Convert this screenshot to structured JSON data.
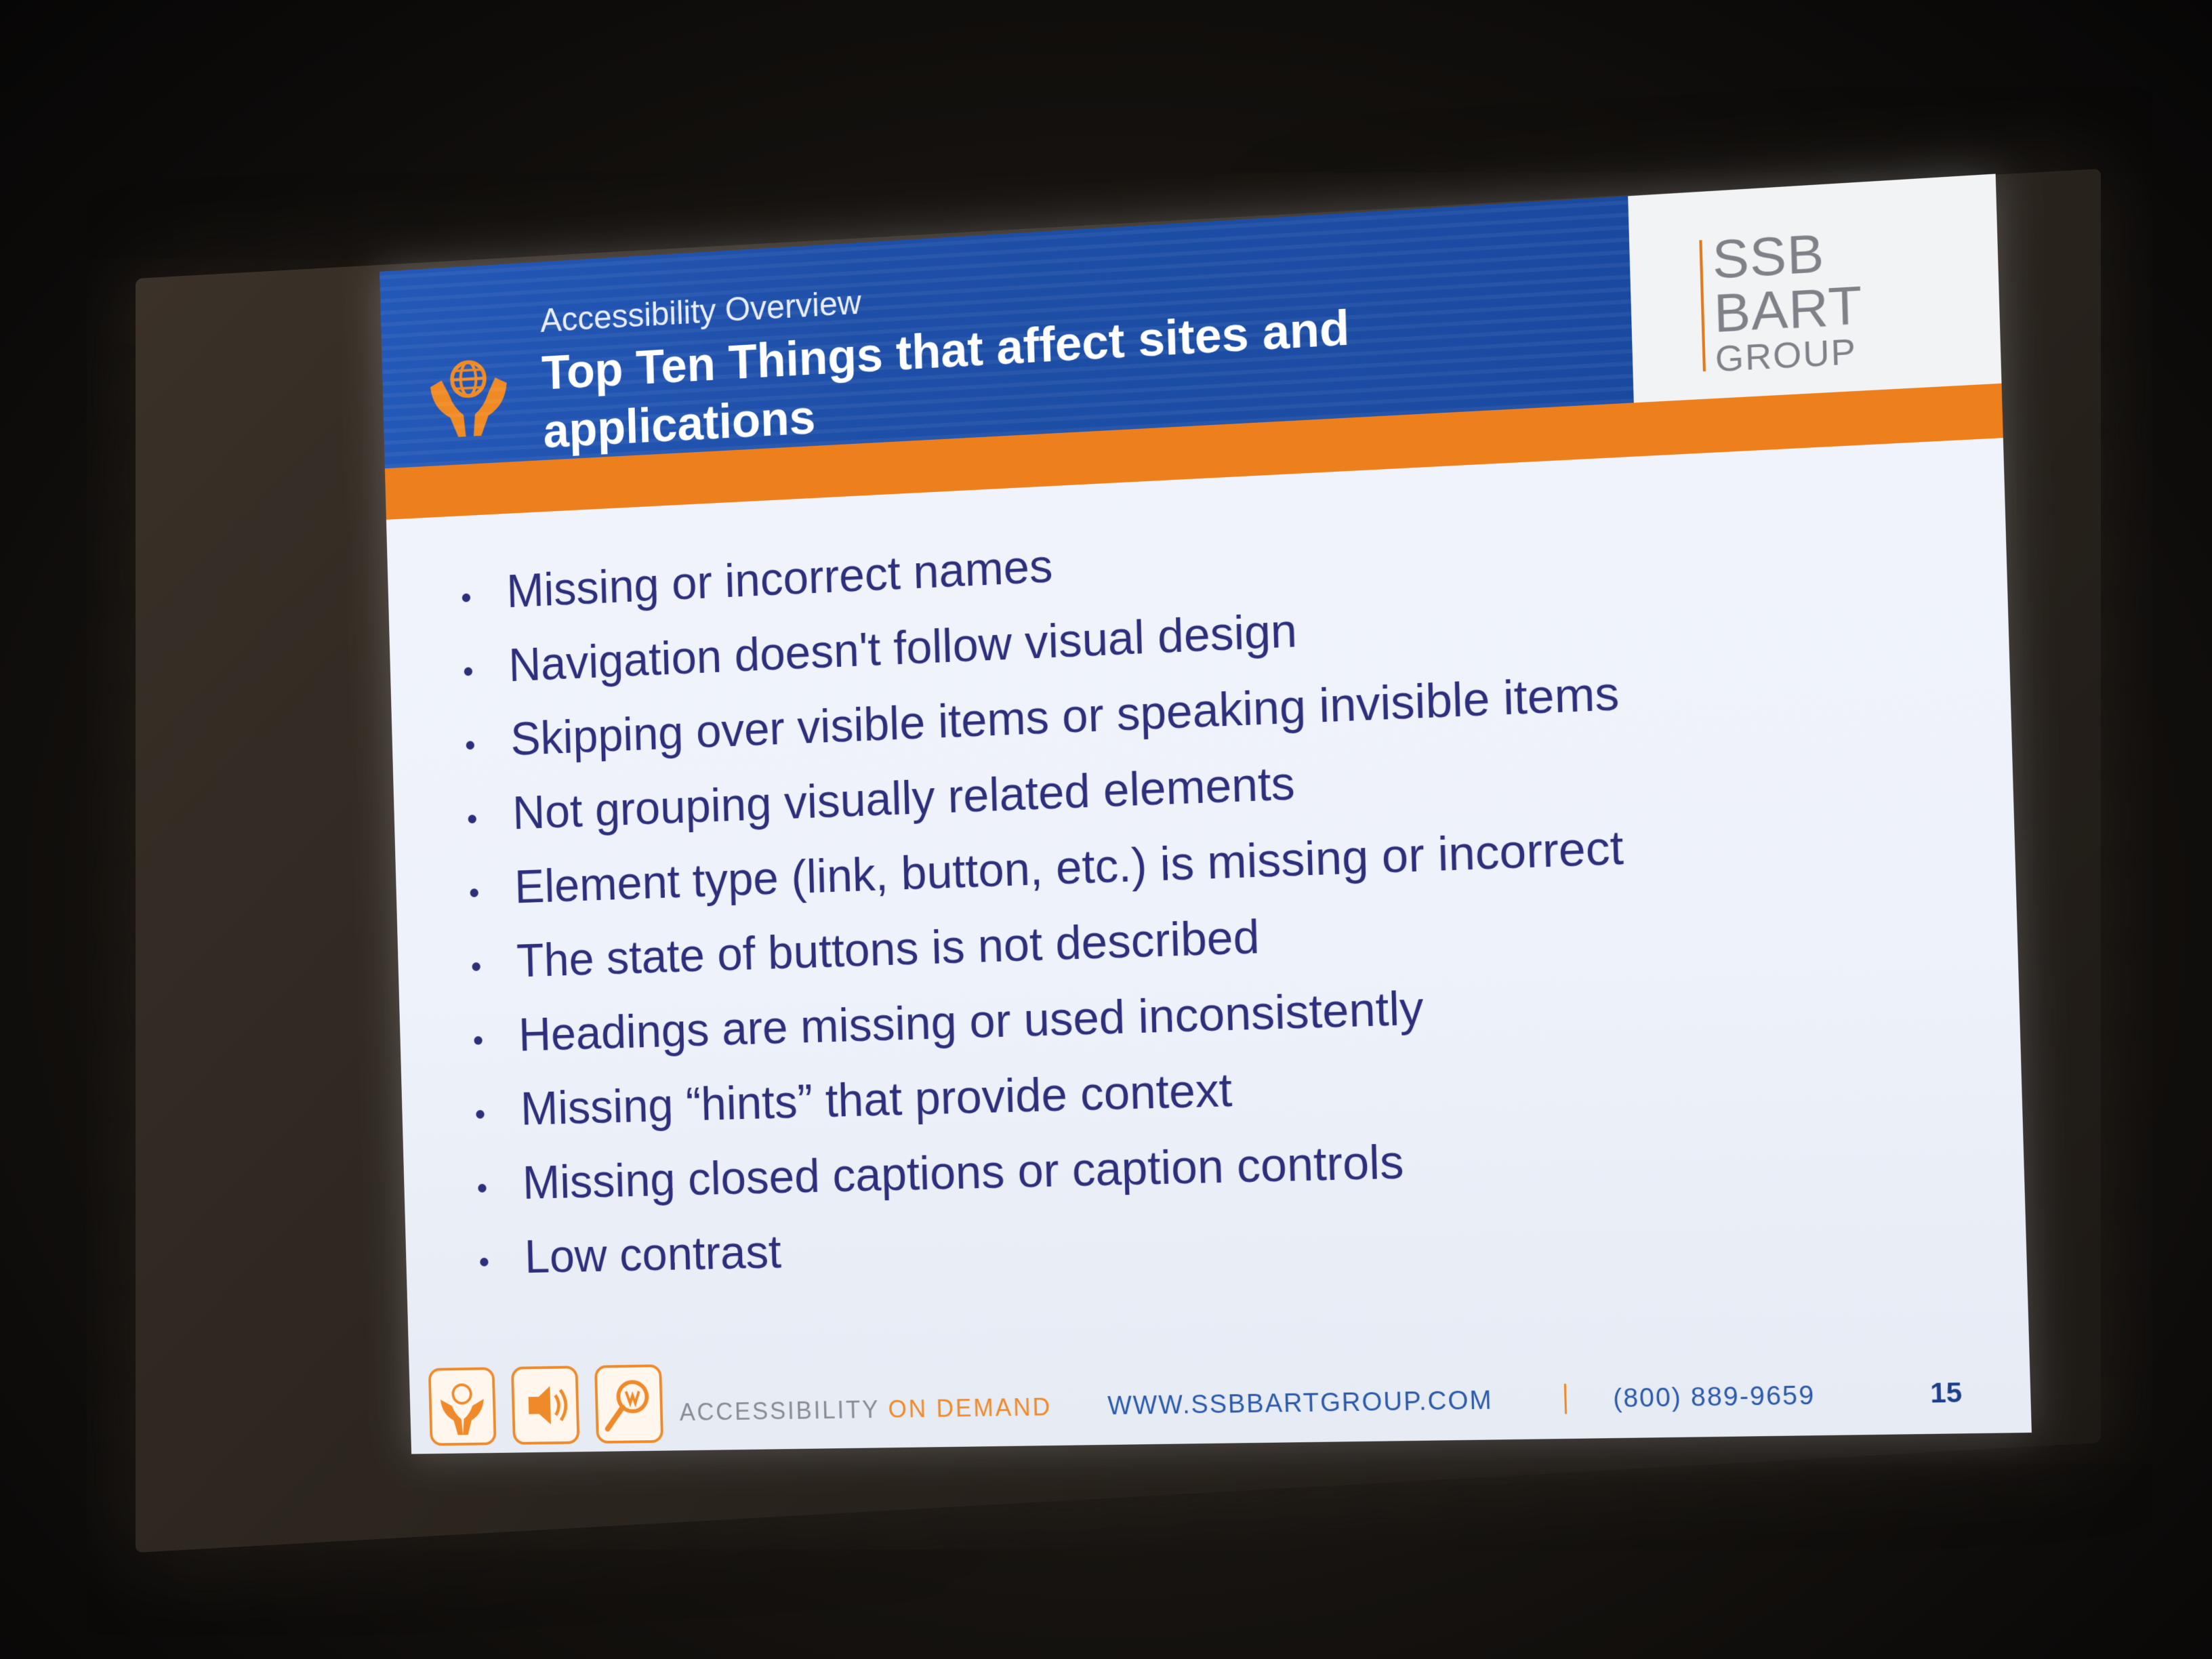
{
  "slide": {
    "subtitle": "Accessibility Overview",
    "title": "Top Ten Things that affect sites and applications",
    "logo": {
      "line1": "SSB",
      "line2": "BART",
      "line3": "GROUP"
    },
    "bullets": [
      "Missing or incorrect names",
      "Navigation doesn't follow visual design",
      "Skipping over visible items or speaking invisible items",
      "Not grouping visually related elements",
      "Element type (link, button, etc.) is missing or incorrect",
      "The state of buttons is not described",
      "Headings are missing or used inconsistently",
      "Missing “hints” that provide context",
      "Missing closed captions or caption controls",
      "Low contrast"
    ],
    "footer": {
      "tagline_prefix": "ACCESSIBILITY ",
      "tagline_suffix": "ON DEMAND",
      "url": "WWW.SSBBARTGROUP.COM",
      "phone": "(800) 889-9659",
      "page_number": "15"
    }
  },
  "colors": {
    "header_blue": "#1e4fa8",
    "accent_orange": "#ee7f1d",
    "bullet_text": "#2d2f7a",
    "slide_background": "#eef2fa"
  },
  "icons": [
    "hands-globe-icon",
    "speaker-icon",
    "magnifier-icon"
  ]
}
